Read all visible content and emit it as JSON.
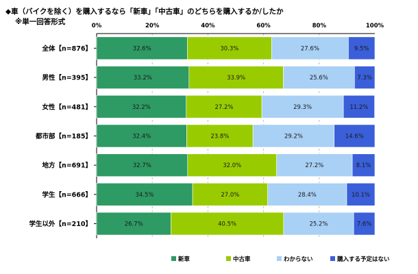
{
  "chart_data": {
    "type": "bar",
    "orientation": "horizontal",
    "stacked": true,
    "percent_stacked": true,
    "title": "◆車（バイクを除く）を購入するなら「新車」「中古車」のどちらを購入するか/したか",
    "subtitle": "※単一回答形式",
    "xlim": [
      0,
      100
    ],
    "x_ticks": [
      "0%",
      "20%",
      "40%",
      "60%",
      "80%",
      "100%"
    ],
    "grid": true,
    "legend_position": "bottom",
    "categories": [
      "全体【n=876】",
      "男性【n=395】",
      "女性【n=481】",
      "都市部【n=185】",
      "地方【n=691】",
      "学生【n=666】",
      "学生以外【n=210】"
    ],
    "series": [
      {
        "name": "新車",
        "color": "#2e9a64",
        "values": [
          32.6,
          33.2,
          32.2,
          32.4,
          32.7,
          34.5,
          26.7
        ],
        "labels": [
          "32.6%",
          "33.2%",
          "32.2%",
          "32.4%",
          "32.7%",
          "34.5%",
          "26.7%"
        ]
      },
      {
        "name": "中古車",
        "color": "#99cc00",
        "values": [
          30.3,
          33.9,
          27.2,
          23.8,
          32.0,
          27.0,
          40.5
        ],
        "labels": [
          "30.3%",
          "33.9%",
          "27.2%",
          "23.8%",
          "32.0%",
          "27.0%",
          "40.5%"
        ]
      },
      {
        "name": "わからない",
        "color": "#a9d0f5",
        "values": [
          27.6,
          25.6,
          29.3,
          29.2,
          27.2,
          28.4,
          25.2
        ],
        "labels": [
          "27.6%",
          "25.6%",
          "29.3%",
          "29.2%",
          "27.2%",
          "28.4%",
          "25.2%"
        ]
      },
      {
        "name": "購入する予定はない",
        "color": "#3a5fd9",
        "values": [
          9.5,
          7.3,
          11.2,
          14.6,
          8.1,
          10.1,
          7.6
        ],
        "labels": [
          "9.5%",
          "7.3%",
          "11.2%",
          "14.6%",
          "8.1%",
          "10.1%",
          "7.6%"
        ]
      }
    ]
  }
}
